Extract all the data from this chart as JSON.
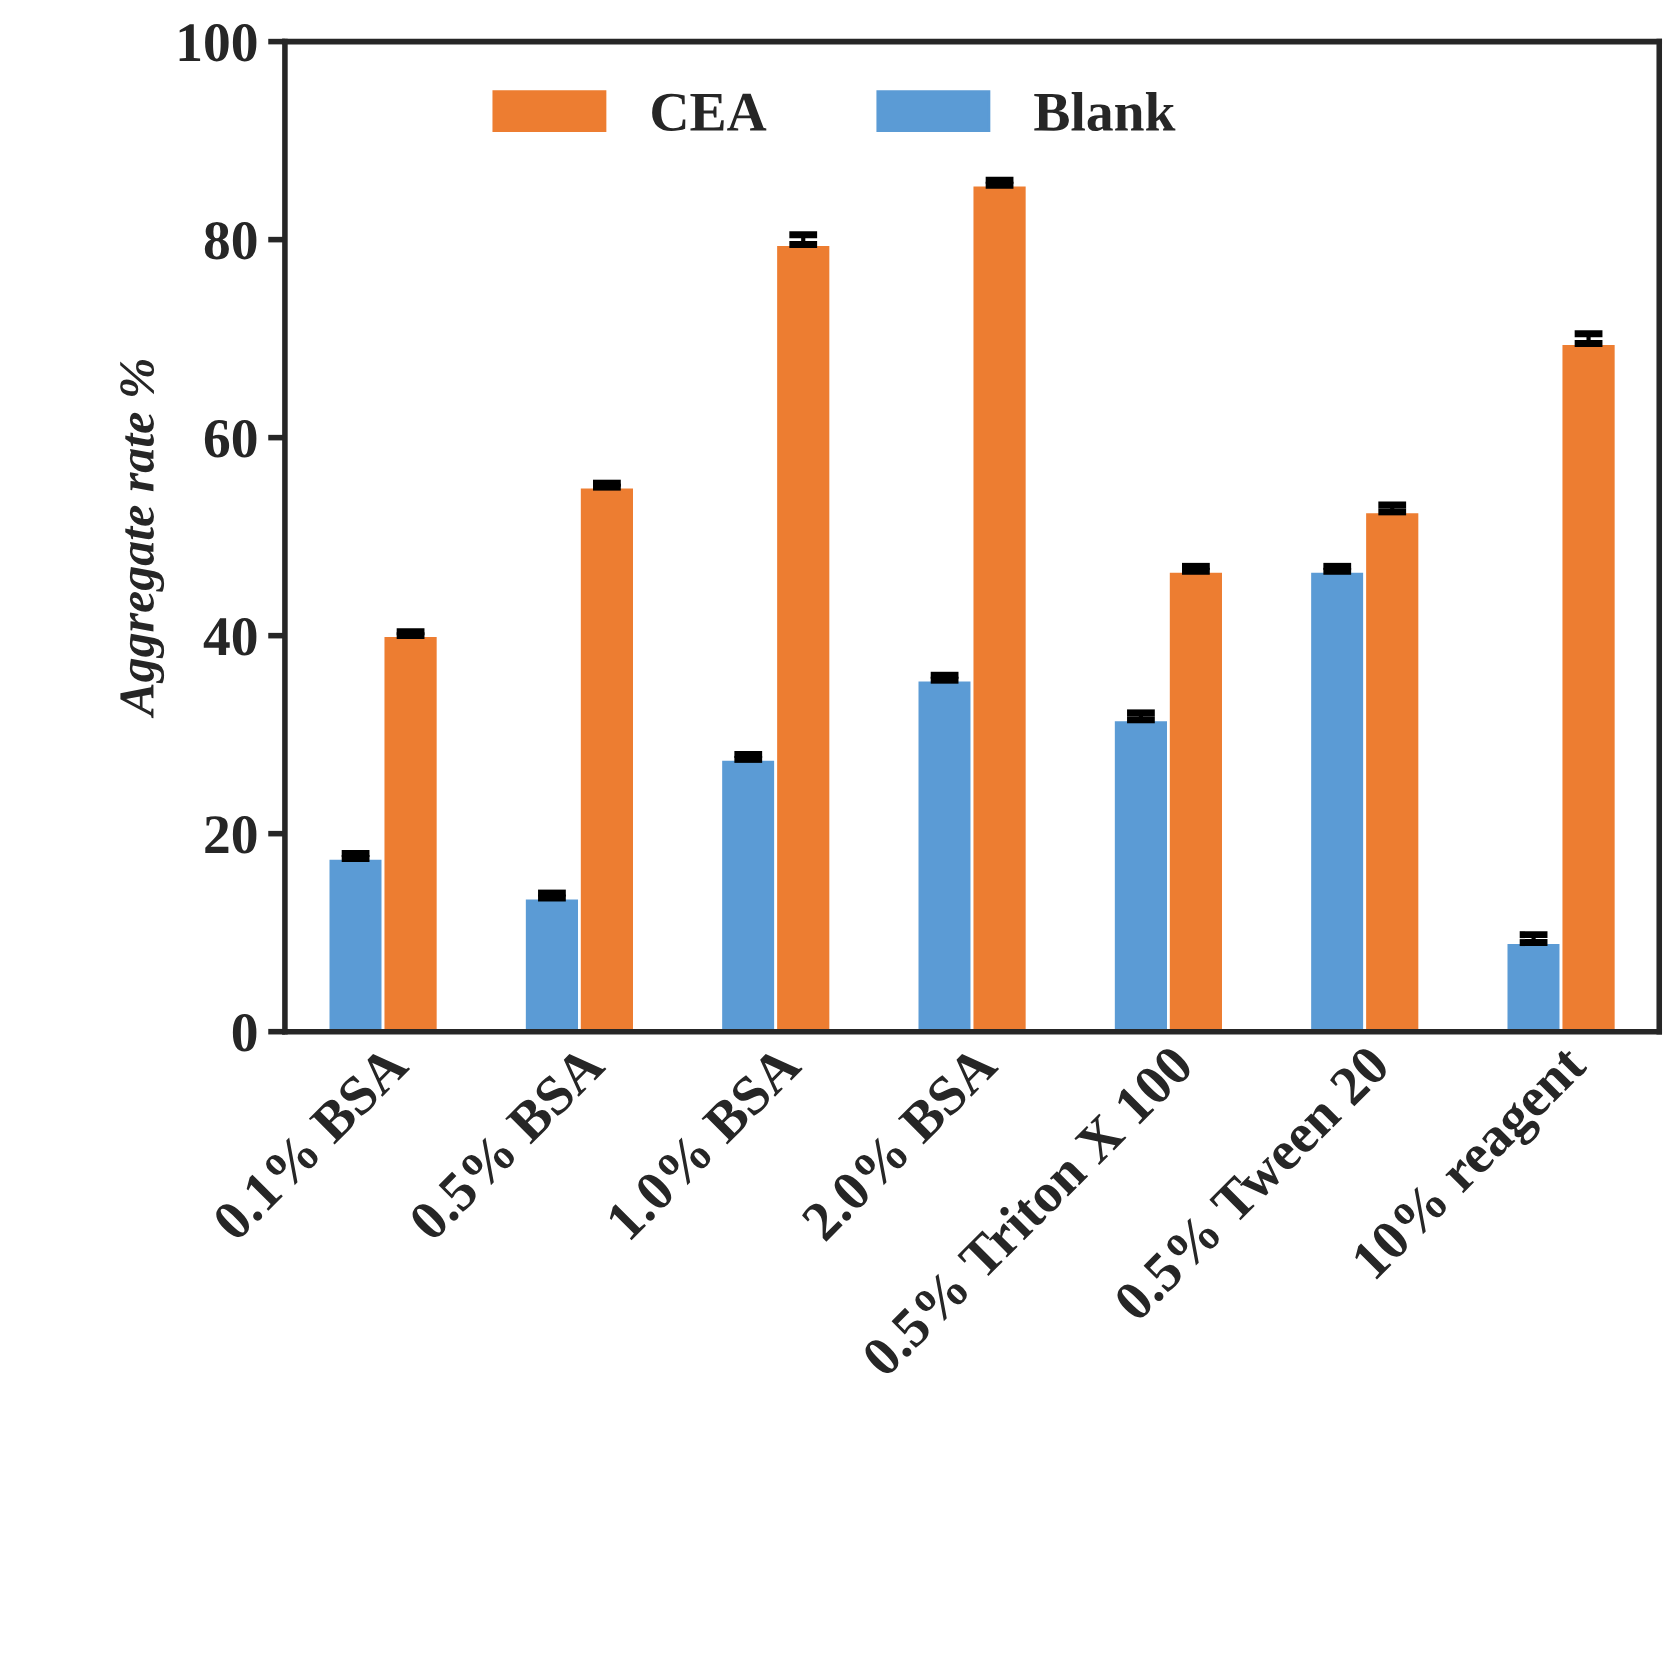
{
  "chart_data": {
    "type": "bar",
    "ylabel": "Aggregate rate %",
    "categories": [
      "0.1% BSA",
      "0.5% BSA",
      "1.0% BSA",
      "2.0% BSA",
      "0.5% Triton X 100",
      "0.5% Tween 20",
      "10% reagent"
    ],
    "series": [
      {
        "name": "Blank",
        "color": "#5b9bd5",
        "values": [
          17.5,
          13.5,
          27.5,
          35.5,
          31.5,
          46.5,
          9
        ],
        "errors": [
          [
            17.5,
            18
          ],
          [
            13.5,
            14
          ],
          [
            27.5,
            28
          ],
          [
            35.5,
            36
          ],
          [
            31.5,
            32.2
          ],
          [
            46.5,
            47
          ],
          [
            9,
            9.8
          ]
        ]
      },
      {
        "name": "CEA",
        "color": "#ed7d31",
        "values": [
          40,
          55,
          79.5,
          85.5,
          46.5,
          52.5,
          69.5
        ],
        "errors": [
          [
            40,
            40.4
          ],
          [
            55,
            55.4
          ],
          [
            79.5,
            80.5
          ],
          [
            85.5,
            86
          ],
          [
            46.5,
            47
          ],
          [
            52.5,
            53.2
          ],
          [
            69.5,
            70.5
          ]
        ]
      }
    ],
    "ylim": [
      0,
      100
    ],
    "yticks": [
      0,
      20,
      40,
      60,
      80,
      100
    ],
    "grid": false,
    "legend": "top"
  }
}
